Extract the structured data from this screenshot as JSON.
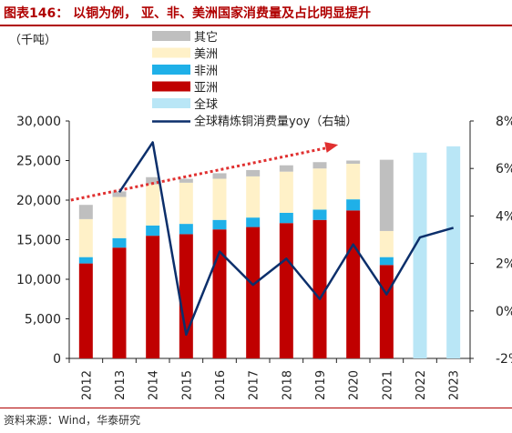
{
  "header": {
    "title": "图表146： 以铜为例， 亚、非、美洲国家消费量及占比明显提升"
  },
  "footer": {
    "source": "资料来源：Wind，华泰研究"
  },
  "chart_data": {
    "type": "bar",
    "stacked": true,
    "categories": [
      "2012",
      "2013",
      "2014",
      "2015",
      "2016",
      "2017",
      "2018",
      "2019",
      "2020",
      "2021",
      "2022",
      "2023"
    ],
    "unit_label": "（千吨）",
    "series": [
      {
        "name": "亚洲",
        "color": "#c00000",
        "values": [
          12000,
          14000,
          15500,
          15700,
          16300,
          16600,
          17100,
          17500,
          18700,
          11800,
          null,
          null
        ]
      },
      {
        "name": "非洲",
        "color": "#1fb0e8",
        "values": [
          800,
          1200,
          1300,
          1300,
          1200,
          1200,
          1300,
          1300,
          1400,
          1000,
          null,
          null
        ]
      },
      {
        "name": "美洲",
        "color": "#fff1c8",
        "values": [
          4800,
          5200,
          5200,
          5200,
          5200,
          5200,
          5200,
          5200,
          4500,
          3300,
          null,
          null
        ]
      },
      {
        "name": "其它",
        "color": "#bfbfbf",
        "values": [
          1800,
          700,
          900,
          500,
          700,
          800,
          800,
          800,
          400,
          9000,
          null,
          null
        ]
      },
      {
        "name": "全球",
        "color": "#b9e6f6",
        "values": [
          null,
          null,
          null,
          null,
          null,
          null,
          null,
          null,
          null,
          null,
          26000,
          26800
        ]
      }
    ],
    "line_series": {
      "name": "全球精炼铜消费量yoy（右轴）",
      "color": "#0c2f6b",
      "axis": "right",
      "values": [
        null,
        5.0,
        7.1,
        -1.0,
        2.5,
        1.1,
        2.2,
        0.5,
        2.8,
        0.7,
        3.1,
        3.5
      ]
    },
    "trend_arrow": {
      "from": [
        2012,
        20000
      ],
      "to": [
        2018,
        27000
      ],
      "color": "#e03030"
    },
    "left_axis": {
      "ylim": [
        0,
        30000
      ],
      "ticks": [
        "0",
        "5,000",
        "10,000",
        "15,000",
        "20,000",
        "25,000",
        "30,000"
      ],
      "tick_values": [
        0,
        5000,
        10000,
        15000,
        20000,
        25000,
        30000
      ]
    },
    "right_axis": {
      "ylim": [
        -2,
        8
      ],
      "ticks": [
        "-2%",
        "0%",
        "2%",
        "4%",
        "6%",
        "8%"
      ],
      "tick_values": [
        -2,
        0,
        2,
        4,
        6,
        8
      ]
    },
    "legend_order": [
      "其它",
      "美洲",
      "非洲",
      "亚洲",
      "全球",
      "全球精炼铜消费量yoy（右轴）"
    ],
    "legend_placement": "top-center",
    "grid": false
  }
}
